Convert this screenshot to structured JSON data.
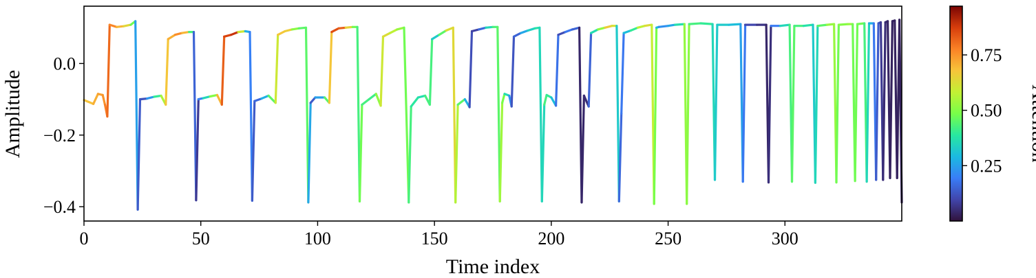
{
  "chart_data": {
    "type": "line",
    "color_encoding": "attention",
    "xlabel": "Time index",
    "ylabel": "Amplitude",
    "xlim": [
      0,
      350
    ],
    "ylim": [
      -0.44,
      0.16
    ],
    "xticks": [
      0,
      50,
      100,
      150,
      200,
      250,
      300
    ],
    "xtick_labels": [
      "0",
      "50",
      "100",
      "150",
      "200",
      "250",
      "300"
    ],
    "yticks": [
      0.0,
      -0.2,
      -0.4
    ],
    "ytick_labels": [
      "0.0",
      "−0.2",
      "−0.4"
    ],
    "colorbar": {
      "label": "Attention",
      "range": [
        0,
        0.97
      ],
      "ticks": [
        0.25,
        0.5,
        0.75
      ],
      "tick_labels": [
        "0.25",
        "0.50",
        "0.75"
      ],
      "colormap": "turbo"
    },
    "series": [
      {
        "name": "Amplitude",
        "points": [
          [
            0,
            -0.102,
            0.66
          ],
          [
            4,
            -0.113,
            0.7
          ],
          [
            6,
            -0.085,
            0.72
          ],
          [
            8,
            -0.088,
            0.74
          ],
          [
            9,
            -0.115,
            0.76
          ],
          [
            10,
            -0.148,
            0.8
          ],
          [
            11,
            0.108,
            0.82
          ],
          [
            14,
            0.102,
            0.72
          ],
          [
            17,
            0.104,
            0.68
          ],
          [
            20,
            0.108,
            0.6
          ],
          [
            22,
            0.118,
            0.35
          ],
          [
            23,
            -0.408,
            0.15
          ],
          [
            24,
            -0.1,
            0.12
          ],
          [
            27,
            -0.098,
            0.12
          ],
          [
            30,
            -0.093,
            0.35
          ],
          [
            33,
            -0.09,
            0.45
          ],
          [
            35,
            -0.115,
            0.65
          ],
          [
            36,
            0.068,
            0.7
          ],
          [
            39,
            0.08,
            0.72
          ],
          [
            42,
            0.085,
            0.8
          ],
          [
            45,
            0.088,
            0.6
          ],
          [
            47,
            0.088,
            0.25
          ],
          [
            48,
            -0.382,
            0.05
          ],
          [
            49,
            -0.1,
            0.1
          ],
          [
            51,
            -0.097,
            0.3
          ],
          [
            54,
            -0.092,
            0.4
          ],
          [
            57,
            -0.088,
            0.6
          ],
          [
            59,
            -0.115,
            0.8
          ],
          [
            60,
            0.075,
            0.85
          ],
          [
            63,
            0.08,
            0.88
          ],
          [
            66,
            0.088,
            0.9
          ],
          [
            69,
            0.09,
            0.3
          ],
          [
            71,
            0.088,
            0.25
          ],
          [
            72,
            -0.383,
            0.15
          ],
          [
            73,
            -0.105,
            0.12
          ],
          [
            76,
            -0.098,
            0.2
          ],
          [
            79,
            -0.09,
            0.35
          ],
          [
            82,
            -0.11,
            0.55
          ],
          [
            83,
            0.08,
            0.65
          ],
          [
            86,
            0.09,
            0.7
          ],
          [
            89,
            0.095,
            0.62
          ],
          [
            92,
            0.098,
            0.4
          ],
          [
            95,
            0.1,
            0.5
          ],
          [
            96,
            -0.388,
            0.4
          ],
          [
            97,
            -0.11,
            0.12
          ],
          [
            99,
            -0.095,
            0.15
          ],
          [
            103,
            -0.095,
            0.35
          ],
          [
            105,
            -0.11,
            0.55
          ],
          [
            106,
            0.088,
            0.8
          ],
          [
            109,
            0.098,
            0.9
          ],
          [
            112,
            0.1,
            0.75
          ],
          [
            115,
            0.102,
            0.55
          ],
          [
            117,
            0.102,
            0.4
          ],
          [
            118,
            -0.385,
            0.45
          ],
          [
            119,
            -0.115,
            0.5
          ],
          [
            122,
            -0.1,
            0.35
          ],
          [
            125,
            -0.085,
            0.48
          ],
          [
            127,
            -0.118,
            0.55
          ],
          [
            128,
            0.075,
            0.65
          ],
          [
            131,
            0.085,
            0.6
          ],
          [
            134,
            0.095,
            0.55
          ],
          [
            137,
            0.1,
            0.5
          ],
          [
            139,
            -0.388,
            0.45
          ],
          [
            140,
            -0.12,
            0.4
          ],
          [
            143,
            -0.095,
            0.38
          ],
          [
            146,
            -0.09,
            0.35
          ],
          [
            148,
            -0.115,
            0.5
          ],
          [
            149,
            0.068,
            0.35
          ],
          [
            152,
            0.08,
            0.3
          ],
          [
            155,
            0.092,
            0.6
          ],
          [
            158,
            0.1,
            0.65
          ],
          [
            159,
            -0.388,
            0.62
          ],
          [
            160,
            -0.115,
            0.5
          ],
          [
            163,
            -0.1,
            0.4
          ],
          [
            165,
            -0.122,
            0.15
          ],
          [
            166,
            0.09,
            0.08
          ],
          [
            169,
            0.095,
            0.1
          ],
          [
            172,
            0.1,
            0.22
          ],
          [
            175,
            0.102,
            0.48
          ],
          [
            177,
            0.102,
            0.38
          ],
          [
            178,
            -0.385,
            0.52
          ],
          [
            179,
            -0.11,
            0.55
          ],
          [
            180,
            -0.085,
            0.42
          ],
          [
            182,
            -0.09,
            0.3
          ],
          [
            183,
            -0.12,
            0.15
          ],
          [
            184,
            0.075,
            0.1
          ],
          [
            187,
            0.085,
            0.2
          ],
          [
            190,
            0.092,
            0.32
          ],
          [
            193,
            0.098,
            0.35
          ],
          [
            195,
            0.1,
            0.4
          ],
          [
            196,
            -0.385,
            0.3
          ],
          [
            197,
            -0.115,
            0.4
          ],
          [
            198,
            -0.088,
            0.45
          ],
          [
            200,
            -0.095,
            0.35
          ],
          [
            202,
            -0.118,
            0.25
          ],
          [
            203,
            0.08,
            0.1
          ],
          [
            206,
            0.088,
            0.12
          ],
          [
            209,
            0.095,
            0.25
          ],
          [
            212,
            0.1,
            0.05
          ],
          [
            213,
            -0.388,
            0.03
          ],
          [
            214,
            -0.09,
            0.05
          ],
          [
            216,
            -0.12,
            0.05
          ],
          [
            217,
            0.085,
            0.25
          ],
          [
            220,
            0.095,
            0.48
          ],
          [
            223,
            0.1,
            0.55
          ],
          [
            226,
            0.105,
            0.78
          ],
          [
            228,
            0.105,
            0.45
          ],
          [
            229,
            -0.385,
            0.2
          ],
          [
            230,
            -0.14,
            0.12
          ],
          [
            231,
            0.085,
            0.25
          ],
          [
            234,
            0.092,
            0.35
          ],
          [
            237,
            0.1,
            0.45
          ],
          [
            240,
            0.105,
            0.7
          ],
          [
            243,
            0.108,
            0.55
          ],
          [
            244,
            -0.392,
            0.62
          ],
          [
            245,
            0.1,
            0.35
          ],
          [
            246,
            0.102,
            0.25
          ],
          [
            250,
            0.105,
            0.2
          ],
          [
            253,
            0.108,
            0.32
          ],
          [
            257,
            0.11,
            0.42
          ],
          [
            258,
            -0.392,
            0.62
          ],
          [
            259,
            0.11,
            0.4
          ],
          [
            264,
            0.112,
            0.45
          ],
          [
            269,
            0.11,
            0.35
          ],
          [
            270,
            -0.325,
            0.35
          ],
          [
            271,
            0.108,
            0.3
          ],
          [
            276,
            0.108,
            0.35
          ],
          [
            281,
            0.11,
            0.25
          ],
          [
            282,
            -0.33,
            0.25
          ],
          [
            283,
            0.108,
            0.12
          ],
          [
            288,
            0.108,
            0.08
          ],
          [
            292,
            0.108,
            0.05
          ],
          [
            293,
            -0.332,
            0.03
          ],
          [
            294,
            0.105,
            0.08
          ],
          [
            298,
            0.105,
            0.3
          ],
          [
            302,
            0.108,
            0.4
          ],
          [
            303,
            -0.33,
            0.45
          ],
          [
            304,
            0.105,
            0.45
          ],
          [
            308,
            0.105,
            0.4
          ],
          [
            312,
            0.108,
            0.35
          ],
          [
            313,
            -0.333,
            0.3
          ],
          [
            314,
            0.105,
            0.4
          ],
          [
            318,
            0.108,
            0.5
          ],
          [
            321,
            0.11,
            0.55
          ],
          [
            322,
            -0.332,
            0.5
          ],
          [
            323,
            0.108,
            0.45
          ],
          [
            327,
            0.11,
            0.55
          ],
          [
            329,
            0.11,
            0.5
          ],
          [
            330,
            -0.328,
            0.45
          ],
          [
            331,
            0.11,
            0.5
          ],
          [
            334,
            0.112,
            0.45
          ],
          [
            335,
            -0.33,
            0.4
          ],
          [
            336,
            0.112,
            0.3
          ],
          [
            338,
            0.112,
            0.25
          ],
          [
            339,
            -0.325,
            0.12
          ],
          [
            340,
            0.112,
            0.15
          ],
          [
            341,
            0.115,
            0.1
          ],
          [
            342,
            -0.325,
            0.05
          ],
          [
            343,
            0.115,
            0.05
          ],
          [
            344,
            0.118,
            0.04
          ],
          [
            345,
            -0.32,
            0.03
          ],
          [
            346,
            0.118,
            0.03
          ],
          [
            347,
            0.12,
            0.03
          ],
          [
            348,
            -0.32,
            0.03
          ],
          [
            349,
            0.122,
            0.03
          ],
          [
            350,
            -0.388,
            0.03
          ]
        ]
      }
    ]
  }
}
